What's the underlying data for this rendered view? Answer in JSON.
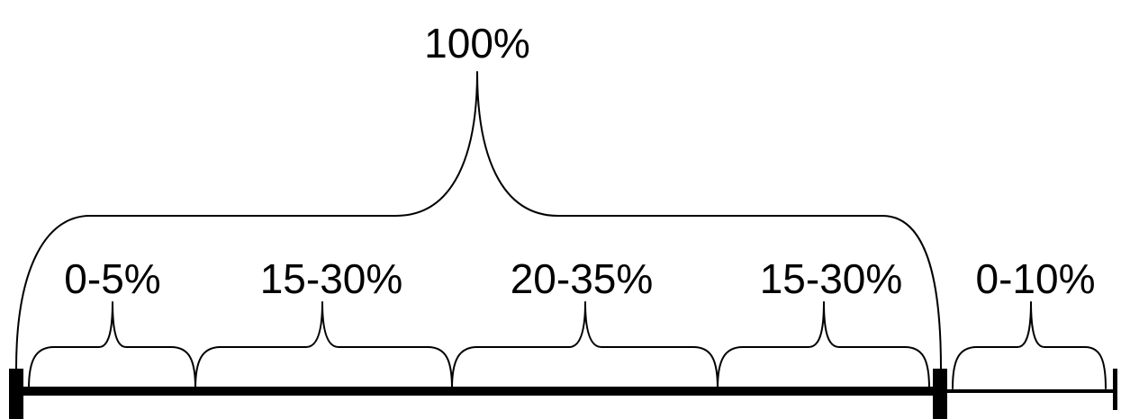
{
  "diagram": {
    "total_label": "100%",
    "segments": [
      {
        "label": "0-5%"
      },
      {
        "label": "15-30%"
      },
      {
        "label": "20-35%"
      },
      {
        "label": "15-30%"
      }
    ],
    "extra_segment": {
      "label": "0-10%"
    },
    "colors": {
      "ink": "#000000",
      "background": "#ffffff"
    }
  }
}
